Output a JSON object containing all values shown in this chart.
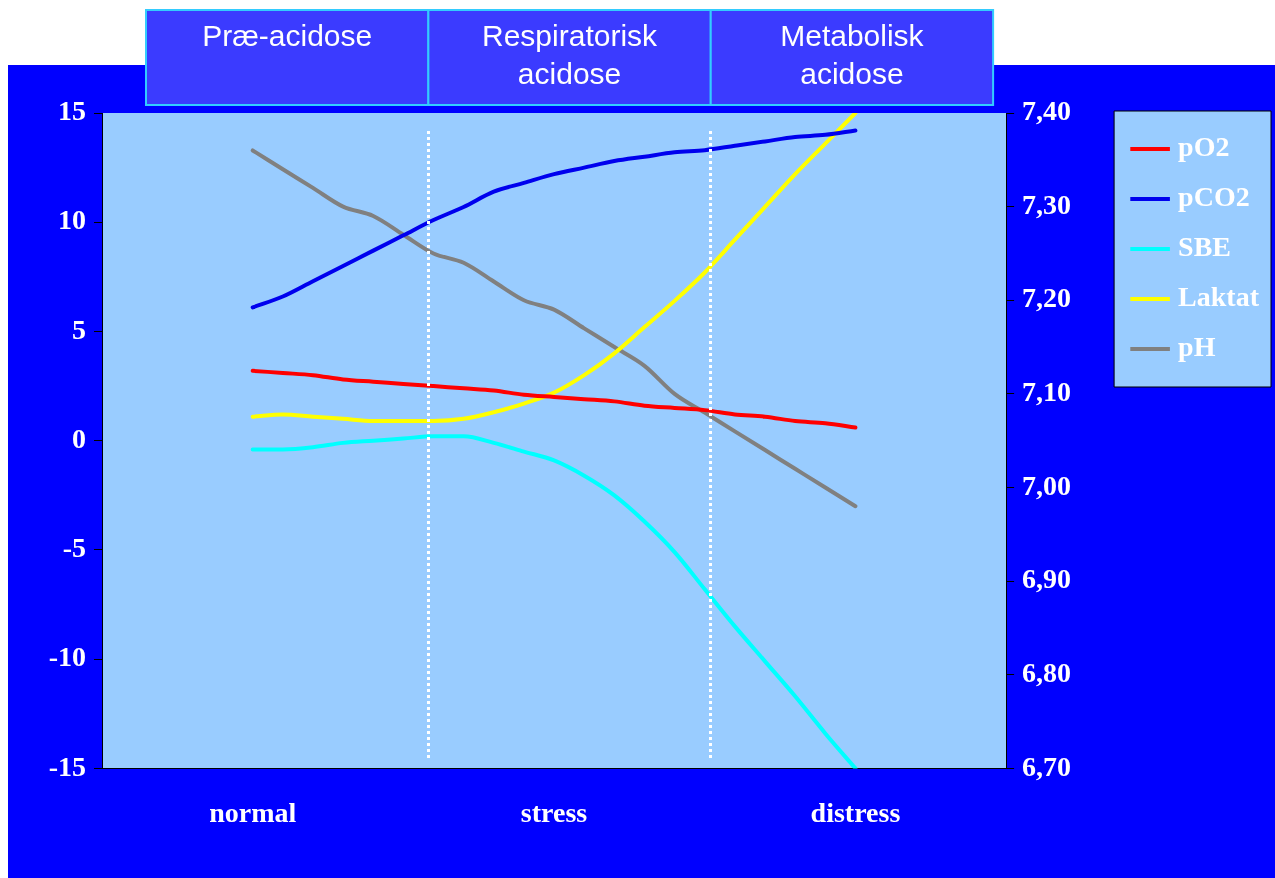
{
  "chart_data": {
    "type": "line",
    "categories": [
      "normal",
      null,
      null,
      null,
      null,
      null,
      null,
      null,
      null,
      null,
      "stress",
      null,
      null,
      null,
      null,
      null,
      null,
      null,
      null,
      null,
      "distress"
    ],
    "ylim": [
      -15,
      15
    ],
    "yticks": [
      -15,
      -10,
      -5,
      0,
      5,
      10,
      15
    ],
    "y2lim": [
      6.7,
      7.4
    ],
    "y2ticks": [
      {
        "value": 6.7,
        "label": "6,70"
      },
      {
        "value": 6.8,
        "label": "6,80"
      },
      {
        "value": 6.9,
        "label": "6,90"
      },
      {
        "value": 7.0,
        "label": "7,00"
      },
      {
        "value": 7.1,
        "label": "7,10"
      },
      {
        "value": 7.2,
        "label": "7,20"
      },
      {
        "value": 7.3,
        "label": "7,30"
      },
      {
        "value": 7.4,
        "label": "7,40"
      }
    ],
    "legend": "right",
    "marker": "none",
    "line_style": "solid",
    "annotations": [
      "Præ-acidose",
      "Respiratorisk acidose",
      "Metabolisk acidose"
    ],
    "series": [
      {
        "name": "pO2",
        "color": "#ff0000",
        "values": [
          3.2,
          3.1,
          3.0,
          2.8,
          2.7,
          2.6,
          2.5,
          2.4,
          2.3,
          2.1,
          2.0,
          1.9,
          1.8,
          1.6,
          1.5,
          1.4,
          1.2,
          1.1,
          0.9,
          0.8,
          0.6
        ]
      },
      {
        "name": "pCO2",
        "color": "#0000ee",
        "values": [
          6.1,
          6.6,
          7.3,
          8.0,
          8.7,
          9.4,
          10.1,
          10.7,
          11.4,
          11.8,
          12.2,
          12.5,
          12.8,
          13.0,
          13.2,
          13.3,
          13.5,
          13.7,
          13.9,
          14.0,
          14.2
        ]
      },
      {
        "name": "SBE",
        "color": "#00ffff",
        "values": [
          -0.4,
          -0.4,
          -0.3,
          -0.1,
          0.0,
          0.1,
          0.2,
          0.2,
          -0.1,
          -0.5,
          -0.9,
          -1.6,
          -2.5,
          -3.7,
          -5.1,
          -6.8,
          -8.5,
          -10.1,
          -11.7,
          -13.4,
          -15
        ]
      },
      {
        "name": "Laktat",
        "color": "#ffff00",
        "values": [
          1.1,
          1.2,
          1.1,
          1.0,
          0.9,
          0.9,
          0.9,
          1.0,
          1.3,
          1.7,
          2.2,
          3.0,
          4.0,
          5.2,
          6.4,
          7.7,
          9.2,
          10.7,
          12.2,
          13.6,
          15
        ]
      },
      {
        "name": "pH",
        "color": "#808080",
        "axis": "y2",
        "values": [
          7.36,
          7.34,
          7.32,
          7.3,
          7.29,
          7.27,
          7.25,
          7.24,
          7.22,
          7.2,
          7.19,
          7.17,
          7.15,
          7.13,
          7.1,
          7.08,
          7.06,
          7.04,
          7.02,
          7.0,
          6.98
        ]
      }
    ]
  }
}
